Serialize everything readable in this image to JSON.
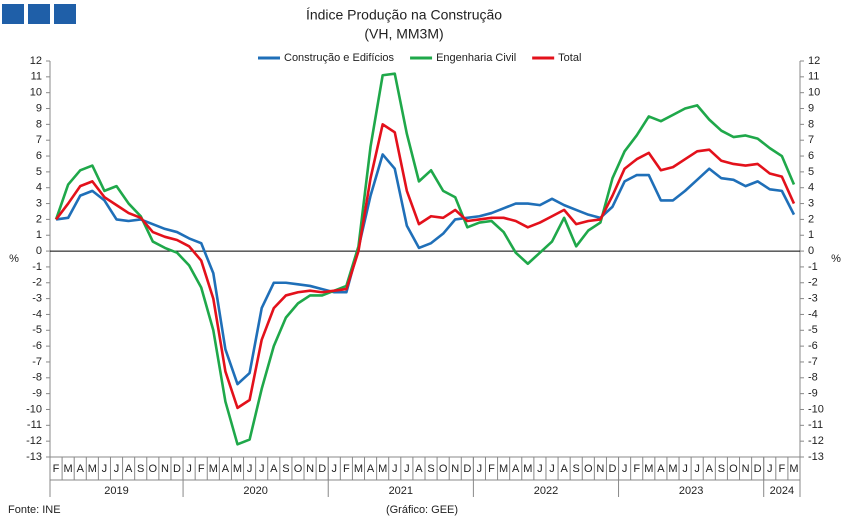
{
  "chart_data": {
    "type": "line",
    "title": "Índice Produção na Construção",
    "subtitle": "(VH, MM3M)",
    "y_axis_label": "%",
    "source": "Fonte: INE",
    "credit": "(Gráfico: GEE)",
    "categories": [
      "F",
      "M",
      "A",
      "M",
      "J",
      "J",
      "A",
      "S",
      "O",
      "N",
      "D",
      "J",
      "F",
      "M",
      "A",
      "M",
      "J",
      "J",
      "A",
      "S",
      "O",
      "N",
      "D",
      "J",
      "F",
      "M",
      "A",
      "M",
      "J",
      "J",
      "A",
      "S",
      "O",
      "N",
      "D",
      "J",
      "F",
      "M",
      "A",
      "M",
      "J",
      "J",
      "A",
      "S",
      "O",
      "N",
      "D",
      "J",
      "F",
      "M",
      "A",
      "M",
      "J",
      "J",
      "A",
      "S",
      "O",
      "N",
      "D",
      "J",
      "F",
      "M"
    ],
    "years": [
      "2019",
      "2020",
      "2021",
      "2022",
      "2023",
      "2024"
    ],
    "ylim": [
      -13,
      12
    ],
    "yticks": [
      -13,
      -12,
      -11,
      -10,
      -9,
      -8,
      -7,
      -6,
      -5,
      -4,
      -3,
      -2,
      -1,
      0,
      1,
      2,
      3,
      4,
      5,
      6,
      7,
      8,
      9,
      10,
      11,
      12
    ],
    "series": [
      {
        "name": "Construção e Edifícios",
        "color": "#1f6fb8",
        "values": [
          2.0,
          2.1,
          3.5,
          3.8,
          3.2,
          2.0,
          1.9,
          2.0,
          1.7,
          1.4,
          1.2,
          0.8,
          0.5,
          -1.4,
          -6.2,
          -8.4,
          -7.7,
          -3.6,
          -2.0,
          -2.0,
          -2.1,
          -2.2,
          -2.4,
          -2.6,
          -2.6,
          0.2,
          3.5,
          6.1,
          5.2,
          1.6,
          0.2,
          0.5,
          1.1,
          2.0,
          2.1,
          2.2,
          2.4,
          2.7,
          3.0,
          3.0,
          2.9,
          3.3,
          2.9,
          2.6,
          2.3,
          2.1,
          2.8,
          4.4,
          4.8,
          4.8,
          3.2,
          3.2,
          3.8,
          4.5,
          5.2,
          4.6,
          4.5,
          4.1,
          4.4,
          3.9,
          3.8,
          2.3
        ]
      },
      {
        "name": "Engenharia Civil",
        "color": "#1fa84a",
        "values": [
          2.0,
          4.2,
          5.1,
          5.4,
          3.8,
          4.1,
          3.0,
          2.2,
          0.6,
          0.2,
          -0.1,
          -0.9,
          -2.3,
          -5.0,
          -9.5,
          -12.2,
          -11.9,
          -8.7,
          -6.0,
          -4.2,
          -3.3,
          -2.8,
          -2.8,
          -2.5,
          -2.2,
          0.3,
          6.6,
          11.1,
          11.2,
          7.4,
          4.4,
          5.1,
          3.8,
          3.4,
          1.5,
          1.8,
          1.9,
          1.2,
          -0.1,
          -0.8,
          -0.1,
          0.6,
          2.1,
          0.3,
          1.3,
          1.8,
          4.6,
          6.3,
          7.3,
          8.5,
          8.2,
          8.6,
          9.0,
          9.2,
          8.3,
          7.6,
          7.2,
          7.3,
          7.1,
          6.5,
          6.0,
          4.2
        ]
      },
      {
        "name": "Total",
        "color": "#e3111b",
        "values": [
          2.0,
          3.0,
          4.1,
          4.4,
          3.4,
          2.9,
          2.4,
          2.1,
          1.2,
          0.9,
          0.7,
          0.3,
          -0.6,
          -3.0,
          -7.6,
          -9.9,
          -9.4,
          -5.6,
          -3.6,
          -2.8,
          -2.6,
          -2.5,
          -2.6,
          -2.5,
          -2.4,
          0.0,
          4.6,
          8.0,
          7.5,
          3.8,
          1.7,
          2.2,
          2.1,
          2.6,
          1.9,
          2.0,
          2.1,
          2.1,
          1.9,
          1.5,
          1.8,
          2.2,
          2.6,
          1.7,
          1.9,
          2.0,
          3.5,
          5.2,
          5.8,
          6.2,
          5.1,
          5.3,
          5.8,
          6.3,
          6.4,
          5.7,
          5.5,
          5.4,
          5.5,
          4.9,
          4.7,
          3.0
        ]
      }
    ]
  }
}
